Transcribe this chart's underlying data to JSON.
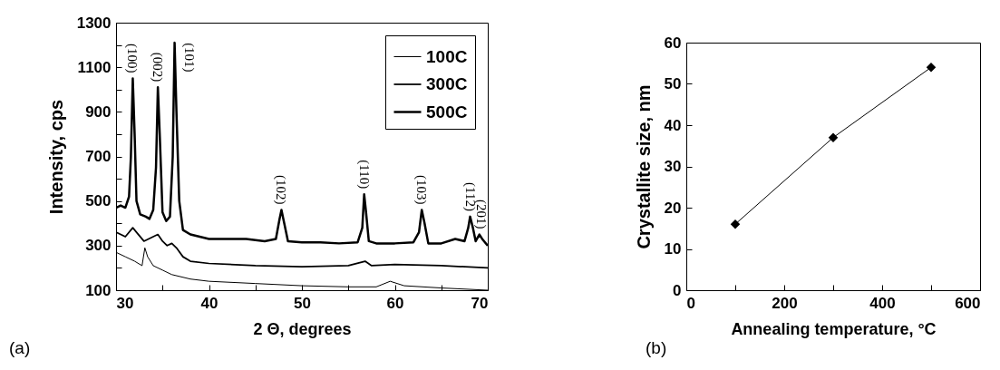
{
  "chart_data": [
    {
      "type": "line",
      "xlabel": "2 Θ, degrees",
      "ylabel": "Intensity, cps",
      "xlim": [
        30,
        70
      ],
      "ylim": [
        100,
        1300
      ],
      "xticks": [
        30,
        {
          "value": 35,
          "label": null
        },
        40,
        {
          "value": 45,
          "label": null
        },
        50,
        {
          "value": 55,
          "label": null
        },
        60,
        {
          "value": 65,
          "label": null
        },
        70
      ],
      "yticks": [
        100,
        {
          "value": 200,
          "label": null
        },
        300,
        {
          "value": 400,
          "label": null
        },
        500,
        {
          "value": 600,
          "label": null
        },
        700,
        {
          "value": 800,
          "label": null
        },
        900,
        {
          "value": 1000,
          "label": null
        },
        1100,
        {
          "value": 1200,
          "label": null
        },
        1300
      ],
      "grid": false,
      "legend": "top right",
      "marker": "none",
      "line_style": "solid",
      "series": [
        {
          "name": "100C",
          "color": "#000000",
          "x": [
            30,
            31,
            32,
            32.8,
            33.1,
            33.4,
            34,
            35,
            36,
            38,
            40,
            45,
            50,
            55,
            58,
            59.5,
            61,
            65,
            70
          ],
          "values": [
            270,
            250,
            230,
            210,
            290,
            250,
            210,
            190,
            170,
            150,
            140,
            130,
            120,
            115,
            115,
            140,
            120,
            110,
            100
          ]
        },
        {
          "name": "300C",
          "color": "#000000",
          "x": [
            30,
            31,
            31.8,
            32.2,
            33,
            34,
            34.5,
            35,
            35.5,
            36,
            36.5,
            37.2,
            38,
            40,
            45,
            50,
            55,
            56.8,
            57.5,
            60,
            65,
            70
          ],
          "values": [
            360,
            340,
            380,
            360,
            320,
            340,
            350,
            320,
            300,
            310,
            290,
            250,
            230,
            220,
            210,
            205,
            210,
            230,
            210,
            215,
            210,
            200
          ]
        },
        {
          "name": "500C",
          "color": "#000000",
          "x": [
            30,
            30.5,
            31,
            31.4,
            31.6,
            31.8,
            32,
            32.2,
            32.6,
            33.2,
            33.6,
            34,
            34.3,
            34.5,
            34.7,
            35,
            35.4,
            35.8,
            36.1,
            36.3,
            36.5,
            36.8,
            37.2,
            38,
            39,
            40,
            42,
            44,
            46,
            47.2,
            47.6,
            47.8,
            48.1,
            48.5,
            50,
            52,
            54,
            56,
            56.5,
            56.7,
            56.9,
            57.2,
            58,
            60,
            62,
            62.6,
            62.9,
            63.2,
            63.6,
            65,
            66.5,
            67.5,
            67.9,
            68.1,
            68.4,
            68.7,
            69.1,
            69.4,
            70
          ],
          "values": [
            470,
            480,
            470,
            520,
            700,
            1050,
            800,
            500,
            440,
            430,
            420,
            460,
            650,
            1010,
            800,
            450,
            410,
            430,
            700,
            1210,
            900,
            500,
            370,
            350,
            340,
            330,
            330,
            330,
            320,
            330,
            420,
            460,
            400,
            320,
            315,
            315,
            310,
            315,
            380,
            530,
            450,
            320,
            310,
            310,
            315,
            360,
            460,
            400,
            310,
            310,
            330,
            320,
            380,
            430,
            380,
            320,
            350,
            330,
            300
          ]
        }
      ],
      "annotations": [
        {
          "text": "(100)",
          "x": 31.8,
          "y": 1050
        },
        {
          "text": "(002)",
          "x": 34.5,
          "y": 1010
        },
        {
          "text": "(101)",
          "x": 36.3,
          "y": 1210
        },
        {
          "text": "(102)",
          "x": 47.8,
          "y": 460
        },
        {
          "text": "(110)",
          "x": 56.7,
          "y": 530
        },
        {
          "text": "(103)",
          "x": 62.9,
          "y": 460
        },
        {
          "text": "(112)",
          "x": 68.1,
          "y": 430
        },
        {
          "text": "(201)",
          "x": 69.3,
          "y": 350
        },
        "(a)"
      ]
    },
    {
      "type": "line",
      "xlabel": "Annealing temperature, °C",
      "ylabel": "Crystallite size, nm",
      "xlim": [
        0,
        600
      ],
      "ylim": [
        0,
        60
      ],
      "xticks": [
        0,
        {
          "value": 100,
          "label": null
        },
        200,
        {
          "value": 300,
          "label": null
        },
        400,
        {
          "value": 500,
          "label": null
        },
        600
      ],
      "yticks": [
        0,
        10,
        20,
        30,
        40,
        50,
        60
      ],
      "grid": false,
      "marker": "diamond",
      "line_style": "solid",
      "x": [
        100,
        300,
        500
      ],
      "series": [
        {
          "color": "#000000",
          "values": [
            16,
            37,
            54
          ]
        }
      ],
      "annotations": [
        "(b)"
      ]
    }
  ]
}
